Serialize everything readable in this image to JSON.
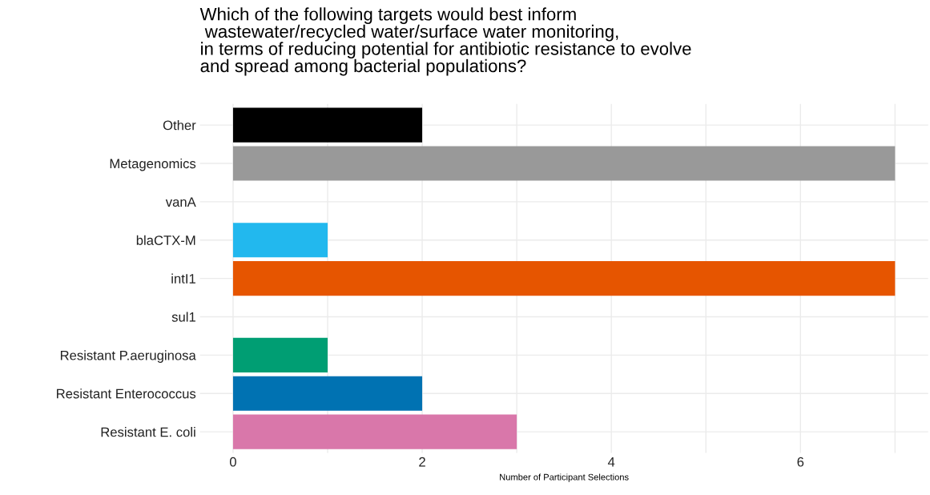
{
  "chart_data": {
    "type": "bar",
    "orientation": "horizontal",
    "title": "Which of the following targets would best inform\n wastewater/recycled water/surface water monitoring,\nin terms of reducing potential for antibiotic resistance to evolve\nand spread among bacterial populations?",
    "xlabel": "Number of Participant Selections",
    "categories": [
      "Other",
      "Metagenomics",
      "vanA",
      "blaCTX-M",
      "intI1",
      "sul1",
      "Resistant P.aeruginosa",
      "Resistant Enterococcus",
      "Resistant E. coli"
    ],
    "values": [
      2,
      7,
      0,
      1,
      7,
      0,
      1,
      2,
      3
    ],
    "colors": [
      "#000000",
      "#999999",
      null,
      "#22b8ee",
      "#e65500",
      null,
      "#009e73",
      "#0072b2",
      "#d977aa"
    ],
    "xlim": [
      -0.35,
      7.35
    ],
    "xticks": [
      0,
      {
        "value": 1,
        "label": null
      },
      2,
      {
        "value": 3,
        "label": null
      },
      4,
      {
        "value": 5,
        "label": null
      },
      6,
      {
        "value": 7,
        "label": null
      }
    ],
    "grid": true
  }
}
